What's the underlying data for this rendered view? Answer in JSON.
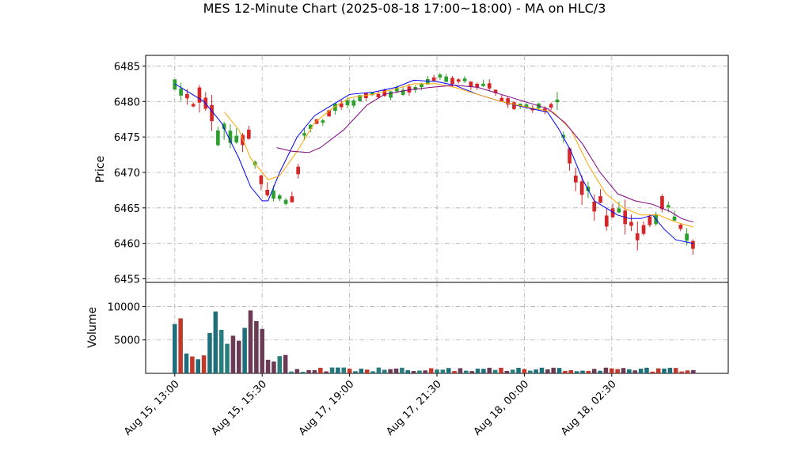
{
  "chart_data": {
    "type": "candlestick",
    "title": "MES 12-Minute Chart (2025-08-18 17:00~18:00) - MA on HLC/3",
    "price_panel": {
      "ylabel": "Price",
      "ylim": [
        6454.5,
        6486.5
      ],
      "yticks": [
        6455,
        6460,
        6465,
        6470,
        6475,
        6480,
        6485
      ],
      "grid": true,
      "up_color": "#2ca02c",
      "down_color": "#d62728",
      "ma_series": [
        {
          "color": "#0000ff",
          "points": [
            [
              0.0,
              6482.5
            ],
            [
              3.0,
              6481.0
            ],
            [
              5.0,
              6480.0
            ],
            [
              8.0,
              6477.0
            ],
            [
              11.0,
              6472.0
            ],
            [
              13.0,
              6468.0
            ],
            [
              15.0,
              6466.0
            ],
            [
              16.0,
              6466.0
            ],
            [
              18.0,
              6470.0
            ],
            [
              21.0,
              6475.0
            ],
            [
              24.0,
              6478.0
            ],
            [
              27.0,
              6479.5
            ],
            [
              30.0,
              6481.0
            ],
            [
              34.0,
              6481.3
            ],
            [
              38.0,
              6482.0
            ],
            [
              41.0,
              6483.0
            ],
            [
              45.0,
              6482.8
            ],
            [
              48.0,
              6482.3
            ],
            [
              52.0,
              6481.0
            ],
            [
              56.0,
              6480.0
            ],
            [
              60.0,
              6479.2
            ],
            [
              64.0,
              6478.5
            ],
            [
              66.0,
              6476.0
            ],
            [
              68.0,
              6473.0
            ],
            [
              70.0,
              6469.0
            ],
            [
              72.0,
              6466.0
            ],
            [
              74.0,
              6465.0
            ],
            [
              76.0,
              6464.0
            ],
            [
              78.0,
              6463.5
            ],
            [
              80.0,
              6463.5
            ],
            [
              82.0,
              6464.0
            ],
            [
              84.0,
              6462.0
            ],
            [
              86.0,
              6460.5
            ],
            [
              89.0,
              6460.0
            ]
          ]
        },
        {
          "color": "#ffa500",
          "points": [
            [
              8.5,
              6478.5
            ],
            [
              11.0,
              6476.0
            ],
            [
              13.0,
              6472.0
            ],
            [
              16.0,
              6469.0
            ],
            [
              18.0,
              6469.5
            ],
            [
              21.0,
              6473.0
            ],
            [
              24.0,
              6477.0
            ],
            [
              27.0,
              6479.0
            ],
            [
              30.0,
              6480.5
            ],
            [
              34.0,
              6481.0
            ],
            [
              38.0,
              6481.8
            ],
            [
              41.0,
              6482.5
            ],
            [
              45.0,
              6482.5
            ],
            [
              48.0,
              6482.0
            ],
            [
              52.0,
              6481.0
            ],
            [
              56.0,
              6480.0
            ],
            [
              60.0,
              6479.3
            ],
            [
              65.0,
              6478.5
            ],
            [
              68.0,
              6476.0
            ],
            [
              71.0,
              6471.0
            ],
            [
              74.0,
              6467.0
            ],
            [
              77.0,
              6465.0
            ],
            [
              80.0,
              6464.0
            ],
            [
              83.0,
              6464.0
            ],
            [
              86.0,
              6463.0
            ],
            [
              89.0,
              6462.3
            ]
          ]
        },
        {
          "color": "#800080",
          "points": [
            [
              17.5,
              6473.5
            ],
            [
              20.0,
              6473.0
            ],
            [
              23.0,
              6472.8
            ],
            [
              25.0,
              6473.5
            ],
            [
              29.0,
              6476.0
            ],
            [
              33.0,
              6479.5
            ],
            [
              36.0,
              6481.0
            ],
            [
              40.0,
              6481.6
            ],
            [
              44.0,
              6482.0
            ],
            [
              48.0,
              6482.3
            ],
            [
              52.0,
              6482.0
            ],
            [
              56.0,
              6481.0
            ],
            [
              60.0,
              6480.0
            ],
            [
              64.0,
              6479.0
            ],
            [
              67.0,
              6477.0
            ],
            [
              70.0,
              6474.0
            ],
            [
              73.0,
              6470.0
            ],
            [
              76.0,
              6467.0
            ],
            [
              79.0,
              6466.0
            ],
            [
              82.0,
              6465.5
            ],
            [
              85.0,
              6464.5
            ],
            [
              87.0,
              6463.5
            ],
            [
              89.0,
              6463.0
            ]
          ]
        }
      ],
      "candle_segments": [
        {
          "n": 4,
          "from": 6483.0,
          "to": 6480.0,
          "noise": 1.5
        },
        {
          "n": 4,
          "from": 6480.0,
          "to": 6476.0,
          "noise": 2.5
        },
        {
          "n": 4,
          "from": 6476.0,
          "to": 6474.5,
          "noise": 2.5
        },
        {
          "n": 4,
          "from": 6474.5,
          "to": 6467.0,
          "noise": 2.0
        },
        {
          "n": 3,
          "from": 6467.0,
          "to": 6465.5,
          "noise": 1.2
        },
        {
          "n": 3,
          "from": 6466.0,
          "to": 6476.0,
          "noise": 1.5
        },
        {
          "n": 6,
          "from": 6476.0,
          "to": 6479.5,
          "noise": 1.0
        },
        {
          "n": 4,
          "from": 6479.5,
          "to": 6481.0,
          "noise": 0.8
        },
        {
          "n": 6,
          "from": 6481.0,
          "to": 6481.5,
          "noise": 0.8
        },
        {
          "n": 6,
          "from": 6481.5,
          "to": 6483.5,
          "noise": 0.8
        },
        {
          "n": 6,
          "from": 6483.5,
          "to": 6482.5,
          "noise": 0.8
        },
        {
          "n": 6,
          "from": 6482.5,
          "to": 6479.5,
          "noise": 1.0
        },
        {
          "n": 6,
          "from": 6479.5,
          "to": 6479.0,
          "noise": 0.8
        },
        {
          "n": 4,
          "from": 6479.0,
          "to": 6468.0,
          "noise": 2.5
        },
        {
          "n": 5,
          "from": 6468.0,
          "to": 6464.0,
          "noise": 2.5
        },
        {
          "n": 5,
          "from": 6464.0,
          "to": 6461.5,
          "noise": 2.8
        },
        {
          "n": 4,
          "from": 6462.0,
          "to": 6465.5,
          "noise": 2.0
        },
        {
          "n": 5,
          "from": 6465.5,
          "to": 6459.5,
          "noise": 1.5
        }
      ]
    },
    "volume_panel": {
      "ylabel": "Volume",
      "ylim": [
        0,
        13600
      ],
      "yticks": [
        5000,
        10000
      ],
      "grid": true,
      "bar_colors": [
        "#6b3a55",
        "#2a7d7d",
        "#c0392b",
        "#1f6f7a"
      ],
      "segments": [
        {
          "n": 2,
          "base": 5000,
          "var": 4000
        },
        {
          "n": 4,
          "base": 2000,
          "var": 1500
        },
        {
          "n": 6,
          "base": 2500,
          "var": 9000
        },
        {
          "n": 4,
          "base": 3000,
          "var": 10000
        },
        {
          "n": 4,
          "base": 700,
          "var": 2500
        },
        {
          "n": 70,
          "base": 200,
          "var": 700
        }
      ]
    },
    "x_axis": {
      "tick_labels": [
        "Aug 15, 13:00",
        "Aug 15, 15:30",
        "Aug 17, 19:00",
        "Aug 17, 21:30",
        "Aug 18, 00:00",
        "Aug 18, 02:30"
      ],
      "tick_positions": [
        0,
        15,
        30,
        45,
        60,
        75
      ],
      "xlim": [
        -5,
        95
      ],
      "grid": true
    }
  }
}
